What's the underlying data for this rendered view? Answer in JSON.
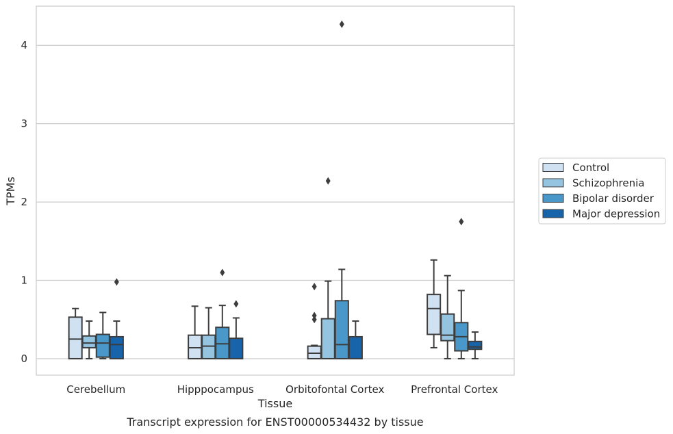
{
  "chart_data": {
    "type": "boxplot",
    "caption": "Transcript expression for ENST00000534432 by tissue",
    "xlabel": "Tissue",
    "ylabel": "TPMs",
    "ylim": [
      -0.21,
      4.5
    ],
    "yticks": [
      0,
      1,
      2,
      3,
      4
    ],
    "grid": "horizontal",
    "legend_position": "right",
    "categories": [
      "Cerebellum",
      "Hipppocampus",
      "Orbitofontal Cortex",
      "Prefrontal Cortex"
    ],
    "series": [
      {
        "name": "Control",
        "color": "#d0e1f2",
        "boxes": [
          {
            "whislo": 0.0,
            "q1": 0.0,
            "med": 0.25,
            "q3": 0.53,
            "whishi": 0.64,
            "fliers": []
          },
          {
            "whislo": 0.0,
            "q1": 0.0,
            "med": 0.14,
            "q3": 0.3,
            "whishi": 0.67,
            "fliers": []
          },
          {
            "whislo": 0.0,
            "q1": 0.0,
            "med": 0.07,
            "q3": 0.16,
            "whishi": 0.17,
            "fliers": [
              0.5,
              0.55,
              0.92
            ]
          },
          {
            "whislo": 0.14,
            "q1": 0.31,
            "med": 0.64,
            "q3": 0.82,
            "whishi": 1.26,
            "fliers": []
          }
        ]
      },
      {
        "name": "Schizophrenia",
        "color": "#94c4df",
        "boxes": [
          {
            "whislo": 0.0,
            "q1": 0.14,
            "med": 0.2,
            "q3": 0.29,
            "whishi": 0.48,
            "fliers": []
          },
          {
            "whislo": 0.0,
            "q1": 0.0,
            "med": 0.16,
            "q3": 0.3,
            "whishi": 0.65,
            "fliers": []
          },
          {
            "whislo": 0.0,
            "q1": 0.0,
            "med": 0.0,
            "q3": 0.51,
            "whishi": 0.99,
            "fliers": [
              2.27
            ]
          },
          {
            "whislo": 0.0,
            "q1": 0.23,
            "med": 0.3,
            "q3": 0.57,
            "whishi": 1.06,
            "fliers": []
          }
        ]
      },
      {
        "name": "Bipolar disorder",
        "color": "#4a98c9",
        "boxes": [
          {
            "whislo": 0.0,
            "q1": 0.02,
            "med": 0.2,
            "q3": 0.31,
            "whishi": 0.59,
            "fliers": []
          },
          {
            "whislo": 0.0,
            "q1": 0.0,
            "med": 0.19,
            "q3": 0.4,
            "whishi": 0.68,
            "fliers": [
              1.1
            ]
          },
          {
            "whislo": 0.0,
            "q1": 0.0,
            "med": 0.18,
            "q3": 0.74,
            "whishi": 1.14,
            "fliers": [
              4.27
            ]
          },
          {
            "whislo": 0.0,
            "q1": 0.1,
            "med": 0.28,
            "q3": 0.46,
            "whishi": 0.87,
            "fliers": [
              1.75
            ]
          }
        ]
      },
      {
        "name": "Major depression",
        "color": "#1764ab",
        "boxes": [
          {
            "whislo": 0.0,
            "q1": 0.0,
            "med": 0.18,
            "q3": 0.28,
            "whishi": 0.48,
            "fliers": [
              0.98
            ]
          },
          {
            "whislo": 0.0,
            "q1": 0.0,
            "med": 0.0,
            "q3": 0.26,
            "whishi": 0.52,
            "fliers": [
              0.7
            ]
          },
          {
            "whislo": 0.0,
            "q1": 0.0,
            "med": 0.0,
            "q3": 0.28,
            "whishi": 0.48,
            "fliers": []
          },
          {
            "whislo": 0.0,
            "q1": 0.12,
            "med": 0.15,
            "q3": 0.22,
            "whishi": 0.34,
            "fliers": []
          }
        ]
      }
    ]
  }
}
